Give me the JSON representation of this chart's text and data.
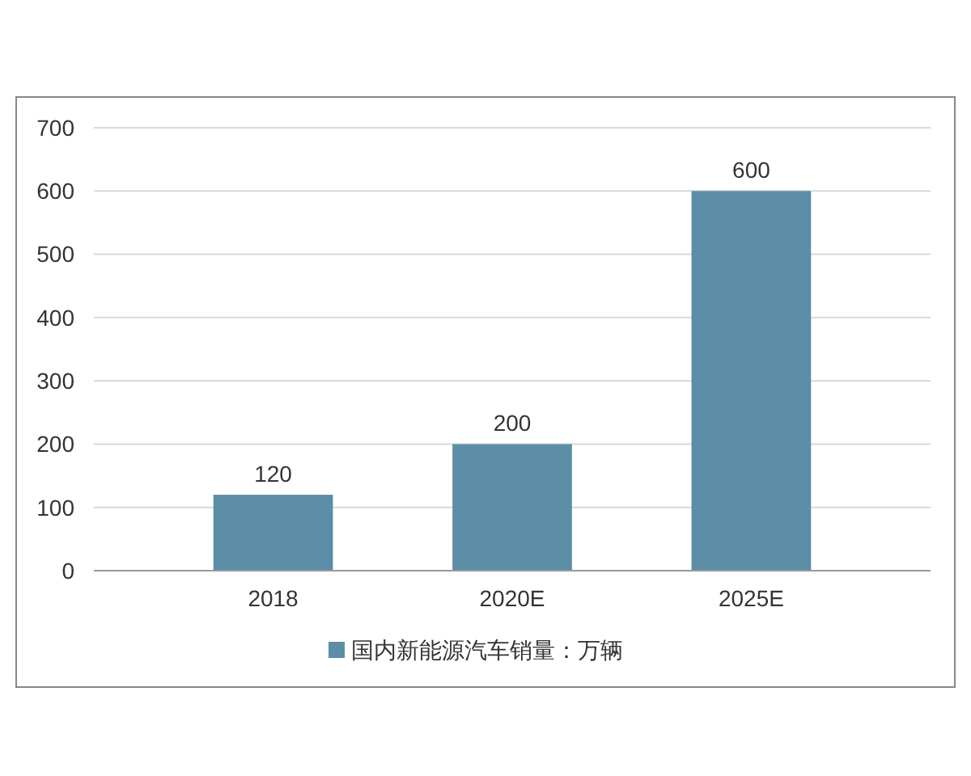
{
  "chart_data": {
    "type": "bar",
    "categories": [
      "2018",
      "2020E",
      "2025E"
    ],
    "series": [
      {
        "name": "国内新能源汽车销量：万辆",
        "color": "#5b8ea6",
        "values": [
          120,
          200,
          600
        ]
      }
    ],
    "ylim": [
      0,
      700
    ],
    "yticks": [
      0,
      100,
      200,
      300,
      400,
      500,
      600,
      700
    ],
    "grid": "y",
    "legend": "bottom",
    "data_labels": true
  }
}
